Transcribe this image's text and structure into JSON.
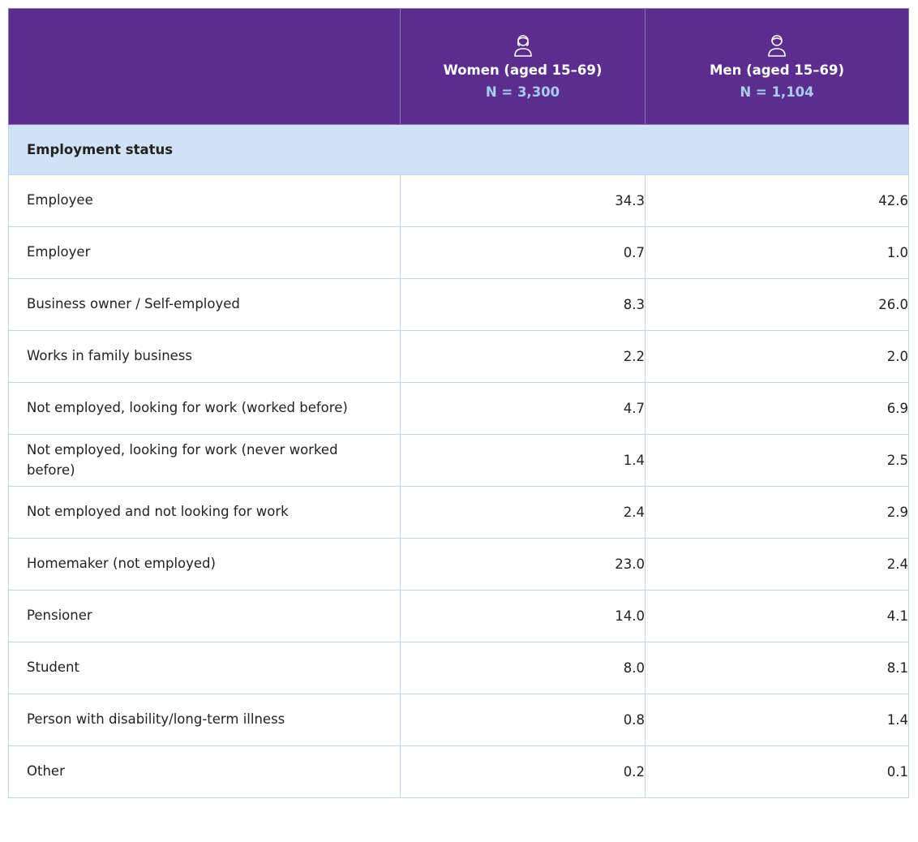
{
  "header": {
    "women": {
      "label": "Women (aged 15–69)",
      "n": "N = 3,300"
    },
    "men": {
      "label": "Men (aged 15–69)",
      "n": "N = 1,104"
    }
  },
  "section": "Employment status",
  "rows": [
    {
      "label": "Employee",
      "women": "34.3",
      "men": "42.6"
    },
    {
      "label": "Employer",
      "women": "0.7",
      "men": "1.0"
    },
    {
      "label": "Business owner / Self-employed",
      "women": "8.3",
      "men": "26.0"
    },
    {
      "label": "Works in family business",
      "women": "2.2",
      "men": "2.0"
    },
    {
      "label": "Not employed, looking for work (worked before)",
      "women": "4.7",
      "men": "6.9"
    },
    {
      "label": "Not employed, looking for work (never worked before)",
      "women": "1.4",
      "men": "2.5"
    },
    {
      "label": "Not employed and not looking for work",
      "women": "2.4",
      "men": "2.9"
    },
    {
      "label": "Homemaker (not employed)",
      "women": "23.0",
      "men": "2.4"
    },
    {
      "label": "Pensioner",
      "women": "14.0",
      "men": "4.1"
    },
    {
      "label": "Student",
      "women": "8.0",
      "men": "8.1"
    },
    {
      "label": "Person with disability/long-term illness",
      "women": "0.8",
      "men": "1.4"
    },
    {
      "label": "Other",
      "women": "0.2",
      "men": "0.1"
    }
  ]
}
